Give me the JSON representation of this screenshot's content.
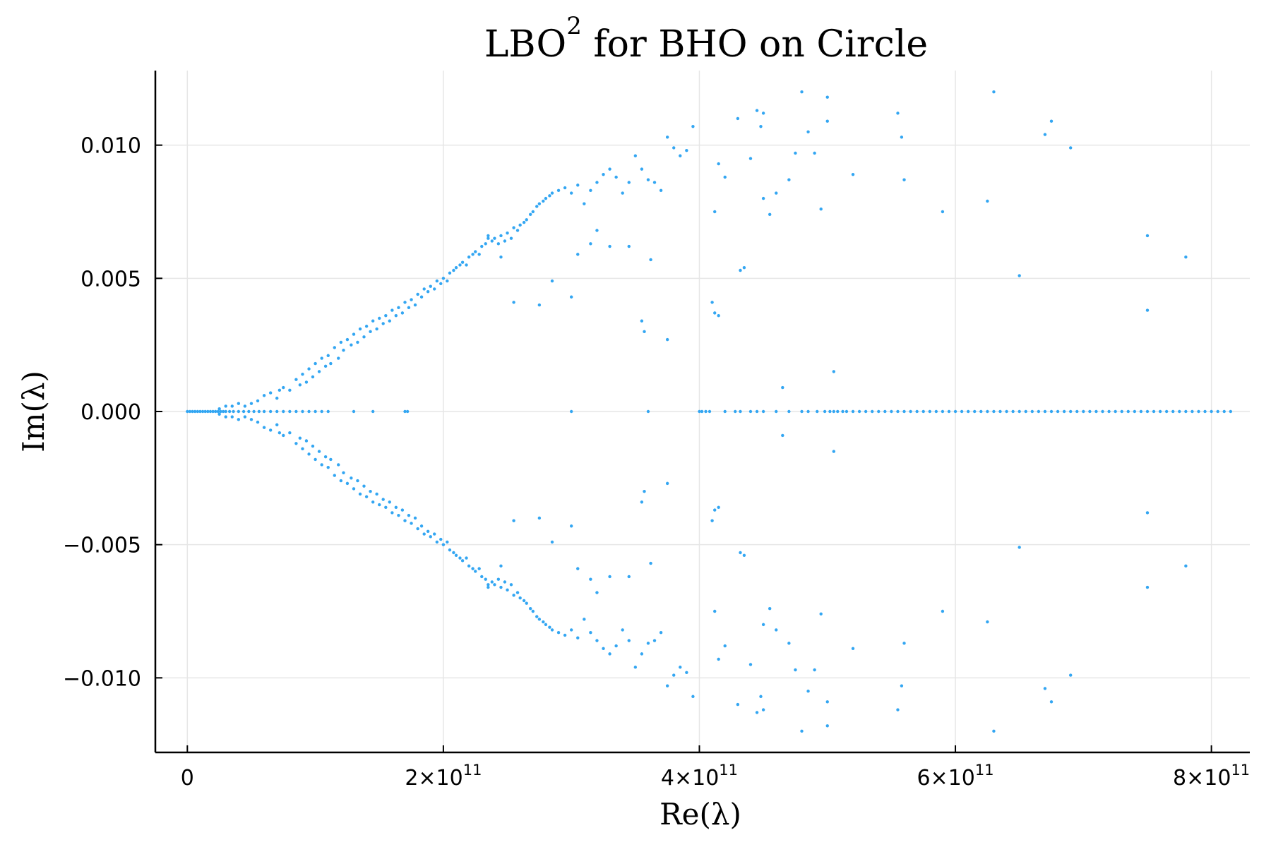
{
  "chart_data": {
    "type": "scatter",
    "title_main": "LBO",
    "title_sup": "2",
    "title_rest": " for BHO on Circle",
    "xlabel": "Re(λ)",
    "ylabel": "Im(λ)",
    "xlim": [
      -25000000000.0,
      830000000000.0
    ],
    "ylim": [
      -0.0128,
      0.0128
    ],
    "grid": true,
    "legend": "none",
    "marker_color": "#33a6f2",
    "x_ticks": [
      {
        "value": 0,
        "base": "0",
        "exp": ""
      },
      {
        "value": 200000000000.0,
        "base": "2×10",
        "exp": "11"
      },
      {
        "value": 400000000000.0,
        "base": "4×10",
        "exp": "11"
      },
      {
        "value": 600000000000.0,
        "base": "6×10",
        "exp": "11"
      },
      {
        "value": 800000000000.0,
        "base": "8×10",
        "exp": "11"
      }
    ],
    "y_ticks": [
      {
        "value": 0.01,
        "label": "0.010"
      },
      {
        "value": 0.005,
        "label": "0.005"
      },
      {
        "value": 0,
        "label": "0.000"
      },
      {
        "value": -0.005,
        "label": "−0.005"
      },
      {
        "value": -0.01,
        "label": "−0.010"
      }
    ],
    "real_axis_points": {
      "note_units": "x in units of 1e11, y = 0",
      "x_e11": [
        0.0,
        0.02,
        0.04,
        0.06,
        0.08,
        0.1,
        0.12,
        0.14,
        0.16,
        0.18,
        0.2,
        0.22,
        0.24,
        0.26,
        0.28,
        0.3,
        0.33,
        0.36,
        0.4,
        0.44,
        0.48,
        0.52,
        0.56,
        0.6,
        0.65,
        0.7,
        0.75,
        0.8,
        0.85,
        0.9,
        0.95,
        1.0,
        1.05,
        1.1,
        1.3,
        1.45,
        1.7,
        1.72,
        3.0,
        3.6,
        4.0,
        4.02,
        4.05,
        4.08,
        4.2,
        4.28,
        4.32,
        4.4,
        4.45,
        4.5,
        4.6,
        4.7,
        4.8,
        4.85,
        4.92,
        4.98,
        5.02,
        5.05,
        5.08,
        5.12,
        5.15,
        5.2,
        5.25,
        5.3,
        5.35,
        5.4,
        5.45,
        5.5,
        5.55,
        5.6,
        5.65,
        5.7,
        5.75,
        5.8,
        5.85,
        5.9,
        5.95,
        6.0,
        6.05,
        6.1,
        6.15,
        6.2,
        6.25,
        6.3,
        6.35,
        6.4,
        6.45,
        6.5,
        6.55,
        6.6,
        6.65,
        6.7,
        6.75,
        6.8,
        6.85,
        6.9,
        6.95,
        7.0,
        7.05,
        7.1,
        7.15,
        7.2,
        7.25,
        7.3,
        7.35,
        7.4,
        7.45,
        7.5,
        7.55,
        7.6,
        7.65,
        7.7,
        7.75,
        7.8,
        7.85,
        7.9,
        7.95,
        8.0,
        8.05,
        8.1,
        8.15
      ]
    },
    "symmetric_points": {
      "note_units": "x in units of 1e11; each point also appears mirrored at -y",
      "points": [
        [
          0.25,
          0.0001
        ],
        [
          0.3,
          0.0002
        ],
        [
          0.35,
          0.0002
        ],
        [
          0.4,
          0.0003
        ],
        [
          0.45,
          0.0002
        ],
        [
          0.5,
          0.0003
        ],
        [
          0.55,
          0.0004
        ],
        [
          0.6,
          0.0006
        ],
        [
          0.65,
          0.0007
        ],
        [
          0.7,
          0.0005
        ],
        [
          0.72,
          0.0008
        ],
        [
          0.75,
          0.0009
        ],
        [
          0.8,
          0.0008
        ],
        [
          0.85,
          0.0012
        ],
        [
          0.88,
          0.001
        ],
        [
          0.9,
          0.0014
        ],
        [
          0.93,
          0.0011
        ],
        [
          0.95,
          0.0016
        ],
        [
          0.98,
          0.0013
        ],
        [
          1.0,
          0.0018
        ],
        [
          1.03,
          0.0015
        ],
        [
          1.05,
          0.002
        ],
        [
          1.08,
          0.0017
        ],
        [
          1.1,
          0.0021
        ],
        [
          1.12,
          0.0018
        ],
        [
          1.15,
          0.0024
        ],
        [
          1.18,
          0.002
        ],
        [
          1.2,
          0.0026
        ],
        [
          1.22,
          0.0023
        ],
        [
          1.25,
          0.0027
        ],
        [
          1.28,
          0.0025
        ],
        [
          1.3,
          0.0029
        ],
        [
          1.33,
          0.0026
        ],
        [
          1.35,
          0.0031
        ],
        [
          1.38,
          0.0028
        ],
        [
          1.4,
          0.0032
        ],
        [
          1.43,
          0.003
        ],
        [
          1.45,
          0.0034
        ],
        [
          1.48,
          0.0031
        ],
        [
          1.5,
          0.0035
        ],
        [
          1.53,
          0.0033
        ],
        [
          1.55,
          0.0036
        ],
        [
          1.58,
          0.0034
        ],
        [
          1.6,
          0.0038
        ],
        [
          1.63,
          0.0036
        ],
        [
          1.65,
          0.0039
        ],
        [
          1.68,
          0.0037
        ],
        [
          1.7,
          0.0041
        ],
        [
          1.73,
          0.0039
        ],
        [
          1.75,
          0.0042
        ],
        [
          1.78,
          0.004
        ],
        [
          1.8,
          0.0044
        ],
        [
          1.83,
          0.0043
        ],
        [
          1.85,
          0.0046
        ],
        [
          1.88,
          0.0045
        ],
        [
          1.9,
          0.0047
        ],
        [
          1.93,
          0.0046
        ],
        [
          1.95,
          0.0049
        ],
        [
          1.98,
          0.0048
        ],
        [
          2.0,
          0.005
        ],
        [
          2.03,
          0.0049
        ],
        [
          2.05,
          0.0052
        ],
        [
          2.08,
          0.0053
        ],
        [
          2.1,
          0.0054
        ],
        [
          2.13,
          0.0055
        ],
        [
          2.15,
          0.0056
        ],
        [
          2.18,
          0.0055
        ],
        [
          2.2,
          0.0058
        ],
        [
          2.23,
          0.0059
        ],
        [
          2.25,
          0.006
        ],
        [
          2.28,
          0.0059
        ],
        [
          2.3,
          0.0062
        ],
        [
          2.33,
          0.0063
        ],
        [
          2.35,
          0.0065
        ],
        [
          2.38,
          0.0064
        ],
        [
          2.4,
          0.0065
        ],
        [
          2.43,
          0.0063
        ],
        [
          2.45,
          0.0066
        ],
        [
          2.48,
          0.0064
        ],
        [
          2.5,
          0.0067
        ],
        [
          2.53,
          0.0065
        ],
        [
          2.55,
          0.0069
        ],
        [
          2.58,
          0.0068
        ],
        [
          2.6,
          0.007
        ],
        [
          2.63,
          0.0071
        ],
        [
          2.65,
          0.0072
        ],
        [
          2.68,
          0.0074
        ],
        [
          2.7,
          0.0075
        ],
        [
          2.73,
          0.0077
        ],
        [
          2.75,
          0.0078
        ],
        [
          2.78,
          0.0079
        ],
        [
          2.8,
          0.008
        ],
        [
          2.83,
          0.0081
        ],
        [
          2.85,
          0.0082
        ],
        [
          2.9,
          0.0083
        ],
        [
          2.95,
          0.0084
        ],
        [
          3.0,
          0.0082
        ],
        [
          3.05,
          0.0085
        ],
        [
          3.1,
          0.0078
        ],
        [
          3.15,
          0.0083
        ],
        [
          3.2,
          0.0086
        ],
        [
          3.25,
          0.0089
        ],
        [
          3.3,
          0.0091
        ],
        [
          3.35,
          0.0088
        ],
        [
          3.4,
          0.0082
        ],
        [
          3.45,
          0.0086
        ],
        [
          3.5,
          0.0096
        ],
        [
          3.55,
          0.0091
        ],
        [
          3.6,
          0.0087
        ],
        [
          3.65,
          0.0086
        ],
        [
          3.7,
          0.0083
        ],
        [
          3.75,
          0.0103
        ],
        [
          3.8,
          0.0099
        ],
        [
          3.85,
          0.0096
        ],
        [
          3.9,
          0.0098
        ],
        [
          3.95,
          0.0107
        ],
        [
          2.35,
          0.0066
        ],
        [
          2.45,
          0.0058
        ],
        [
          2.55,
          0.0041
        ],
        [
          2.75,
          0.004
        ],
        [
          2.85,
          0.0049
        ],
        [
          3.0,
          0.0043
        ],
        [
          3.05,
          0.0059
        ],
        [
          3.15,
          0.0063
        ],
        [
          3.2,
          0.0068
        ],
        [
          3.3,
          0.0062
        ],
        [
          3.45,
          0.0062
        ],
        [
          3.55,
          0.0034
        ],
        [
          3.57,
          0.003
        ],
        [
          3.62,
          0.0057
        ],
        [
          3.75,
          0.0027
        ],
        [
          4.1,
          0.0041
        ],
        [
          4.12,
          0.0037
        ],
        [
          4.15,
          0.0036
        ],
        [
          4.2,
          0.0088
        ],
        [
          4.12,
          0.0075
        ],
        [
          4.15,
          0.0093
        ],
        [
          4.3,
          0.011
        ],
        [
          4.32,
          0.0053
        ],
        [
          4.35,
          0.0054
        ],
        [
          4.4,
          0.0095
        ],
        [
          4.45,
          0.0113
        ],
        [
          4.48,
          0.0107
        ],
        [
          4.5,
          0.0112
        ],
        [
          4.5,
          0.008
        ],
        [
          4.55,
          0.0074
        ],
        [
          4.6,
          0.0082
        ],
        [
          4.7,
          0.0087
        ],
        [
          4.75,
          0.0097
        ],
        [
          4.8,
          0.012
        ],
        [
          4.85,
          0.0105
        ],
        [
          4.9,
          0.0097
        ],
        [
          4.95,
          0.0076
        ],
        [
          5.0,
          0.0118
        ],
        [
          5.0,
          0.0109
        ],
        [
          5.2,
          0.0089
        ],
        [
          5.55,
          0.0112
        ],
        [
          5.58,
          0.0103
        ],
        [
          5.6,
          0.0087
        ],
        [
          5.9,
          0.0075
        ],
        [
          6.25,
          0.0079
        ],
        [
          6.3,
          0.012
        ],
        [
          6.5,
          0.0051
        ],
        [
          6.7,
          0.0104
        ],
        [
          6.75,
          0.0109
        ],
        [
          6.9,
          0.0099
        ],
        [
          7.5,
          0.0066
        ],
        [
          7.5,
          0.0038
        ],
        [
          7.8,
          0.0058
        ],
        [
          4.65,
          0.0009
        ],
        [
          5.05,
          0.0015
        ]
      ]
    }
  }
}
